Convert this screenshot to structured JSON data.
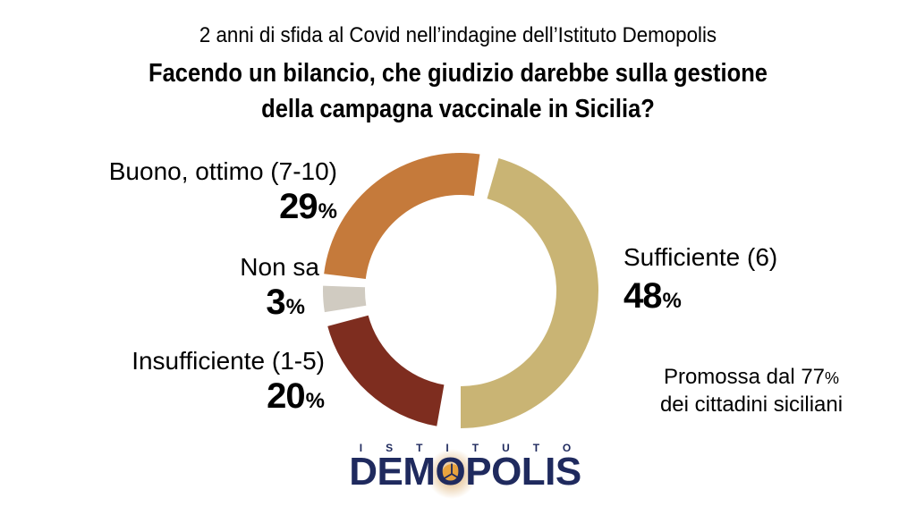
{
  "header": {
    "subtitle": "2 anni di sfida al Covid nell’indagine dell’Istituto Demopolis",
    "title_line1": "Facendo un bilancio, che giudizio darebbe sulla gestione",
    "title_line2": "della campagna vaccinale in Sicilia?"
  },
  "percent_sign": "%",
  "chart_data": {
    "type": "donut",
    "title": "Facendo un bilancio, che giudizio darebbe sulla gestione della campagna vaccinale in Sicilia?",
    "unit": "%",
    "rotation": "clockwise-from-top",
    "legend_position": "around",
    "segments": [
      {
        "id": "sufficiente",
        "label": "Sufficiente (6)",
        "value": 48,
        "color": "#C9B474",
        "start_angle": 16,
        "end_angle": 180
      },
      {
        "id": "insufficiente",
        "label": "Insufficiente (1-5)",
        "value": 20,
        "color": "#7E2D1F",
        "start_angle": 190,
        "end_angle": 255
      },
      {
        "id": "non-sa",
        "label": "Non sa",
        "value": 3,
        "color": "#D0CBC1",
        "start_angle": 261,
        "end_angle": 272
      },
      {
        "id": "buono-ottimo",
        "label": "Buono, ottimo (7-10)",
        "value": 29,
        "color": "#C57A3B",
        "start_angle": 277,
        "end_angle": 368
      }
    ],
    "annotation": "Promossa dal 77% dei cittadini siciliani"
  },
  "annotation": {
    "line1_text": "Promossa dal 77",
    "line1_pct": "%",
    "line2": "dei cittadini siciliani"
  },
  "logo": {
    "istituto": "ISTITUTO",
    "name": "DEMOPOLIS",
    "navy": "#1F2A5E",
    "orange": "#E8A33E"
  }
}
